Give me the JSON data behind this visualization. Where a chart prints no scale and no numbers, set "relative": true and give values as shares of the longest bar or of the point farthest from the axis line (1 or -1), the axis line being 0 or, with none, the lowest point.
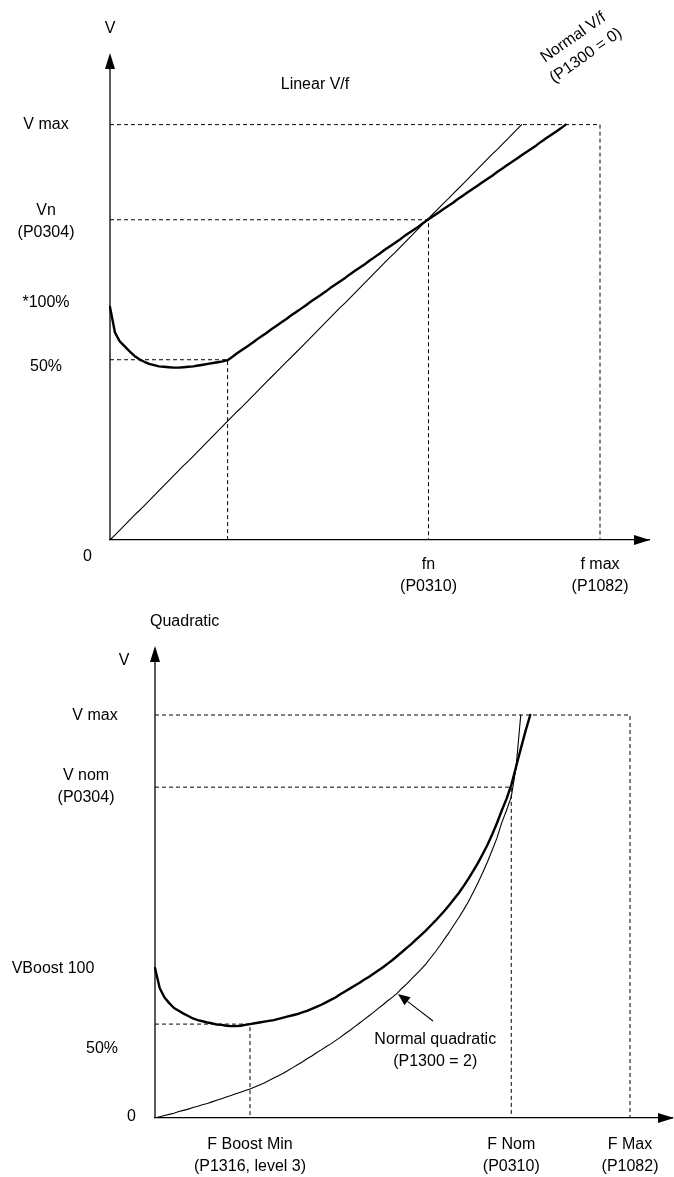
{
  "chart_data": [
    {
      "type": "line",
      "relative": true,
      "title": "Linear V/f",
      "ylabel": "V",
      "marker": "none",
      "categories": [
        null,
        null,
        null,
        null,
        null,
        null,
        null,
        null,
        null,
        null,
        null,
        null,
        null,
        null,
        null,
        null,
        null,
        null,
        null,
        null,
        null,
        null,
        null,
        null,
        null,
        null,
        null,
        null,
        null,
        null,
        null,
        null,
        null,
        null,
        null,
        null,
        null,
        null,
        null,
        null,
        null,
        null,
        null,
        null,
        null,
        null,
        null,
        null,
        null,
        null,
        null,
        null,
        null,
        null,
        null,
        null,
        null,
        null,
        null,
        null,
        null,
        null,
        null,
        null,
        null,
        "fn\n(P0310)",
        null,
        null,
        null,
        null,
        null,
        null,
        null,
        null,
        null,
        null,
        null,
        null,
        null,
        null,
        null,
        null,
        null,
        null,
        null,
        null,
        null,
        null,
        null,
        null,
        null,
        null,
        null,
        null,
        null,
        null,
        null,
        null,
        null,
        null,
        "f max\n(P1082)",
        null,
        null,
        null,
        null,
        null,
        null,
        null,
        null,
        null,
        null
      ],
      "annotations": [
        "0",
        "50%",
        "*100%",
        "Vn\n(P0304)",
        "V max"
      ],
      "series": [
        {
          "color": "#000000",
          "values": [
            0.561,
            0.5,
            0.478,
            0.466,
            0.454,
            0.443,
            0.435,
            0.429,
            0.424,
            0.421,
            0.418,
            0.417,
            0.416,
            0.415,
            0.415,
            0.416,
            0.417,
            0.418,
            0.42,
            0.422,
            0.424,
            0.426,
            0.428,
            0.43,
            0.433,
            0.441,
            0.45,
            0.458,
            0.466,
            0.474,
            0.483,
            0.491,
            0.499,
            0.508,
            0.516,
            0.524,
            0.532,
            0.541,
            0.549,
            0.557,
            0.565,
            0.574,
            0.582,
            0.59,
            0.598,
            0.607,
            0.615,
            0.623,
            0.631,
            0.64,
            0.648,
            0.656,
            0.664,
            0.673,
            0.681,
            0.689,
            0.698,
            0.706,
            0.714,
            0.722,
            0.731,
            0.739,
            0.747,
            0.755,
            0.764,
            0.772,
            0.78,
            0.788,
            0.796,
            0.804,
            0.812,
            0.821,
            0.829,
            0.837,
            0.845,
            0.853,
            0.861,
            0.869,
            0.877,
            0.886,
            0.894,
            0.902,
            0.91,
            0.918,
            0.926,
            0.934,
            0.942,
            0.95,
            0.959,
            0.967,
            0.975,
            0.983,
            0.991,
            1,
            null,
            null,
            null,
            null,
            null,
            null,
            null,
            null,
            null,
            null,
            null,
            null,
            null,
            null,
            null,
            null,
            null
          ]
        },
        {
          "name": "Normal V/f\n(P1300 = 0)",
          "color": "#000000",
          "values": [
            0,
            0.012,
            0.024,
            0.036,
            0.048,
            0.06,
            0.071,
            0.083,
            0.095,
            0.107,
            0.119,
            0.131,
            0.143,
            0.155,
            0.167,
            0.179,
            0.19,
            0.202,
            0.214,
            0.226,
            0.238,
            0.25,
            0.262,
            0.274,
            0.286,
            0.298,
            0.31,
            0.321,
            0.333,
            0.345,
            0.357,
            0.369,
            0.381,
            0.393,
            0.405,
            0.417,
            0.429,
            0.44,
            0.452,
            0.464,
            0.476,
            0.488,
            0.5,
            0.512,
            0.524,
            0.536,
            0.548,
            0.56,
            0.571,
            0.583,
            0.595,
            0.607,
            0.619,
            0.631,
            0.643,
            0.655,
            0.667,
            0.679,
            0.69,
            0.702,
            0.714,
            0.726,
            0.738,
            0.75,
            0.762,
            0.774,
            0.786,
            0.798,
            0.81,
            0.821,
            0.833,
            0.845,
            0.857,
            0.869,
            0.881,
            0.893,
            0.905,
            0.917,
            0.929,
            0.94,
            0.952,
            0.964,
            0.976,
            0.988,
            1,
            null,
            null,
            null,
            null,
            null,
            null,
            null,
            null,
            null,
            null,
            null,
            null,
            null,
            null,
            null,
            null,
            null,
            null,
            null,
            null,
            null,
            null,
            null,
            null,
            null,
            null
          ]
        },
        {
          "type": "step",
          "color": "#000000",
          "line_style": "dashed",
          "values": [
            1,
            1,
            1,
            1,
            1,
            1,
            1,
            1,
            1,
            1,
            1,
            1,
            1,
            1,
            1,
            1,
            1,
            1,
            1,
            1,
            1,
            1,
            1,
            1,
            1,
            1,
            1,
            1,
            1,
            1,
            1,
            1,
            1,
            1,
            1,
            1,
            1,
            1,
            1,
            1,
            1,
            1,
            1,
            1,
            1,
            1,
            1,
            1,
            1,
            1,
            1,
            1,
            1,
            1,
            1,
            1,
            1,
            1,
            1,
            1,
            1,
            1,
            1,
            1,
            1,
            1,
            1,
            1,
            1,
            1,
            1,
            1,
            1,
            1,
            1,
            1,
            1,
            1,
            1,
            1,
            1,
            1,
            1,
            1,
            1,
            1,
            1,
            1,
            1,
            1,
            1,
            1,
            1,
            1,
            1,
            1,
            1,
            1,
            1,
            1,
            0,
            null,
            null,
            null,
            null,
            null,
            null,
            null,
            null,
            null,
            null
          ]
        },
        {
          "type": "step",
          "color": "#000000",
          "line_style": "dashed",
          "values": [
            0.771,
            0.771,
            0.771,
            0.771,
            0.771,
            0.771,
            0.771,
            0.771,
            0.771,
            0.771,
            0.771,
            0.771,
            0.771,
            0.771,
            0.771,
            0.771,
            0.771,
            0.771,
            0.771,
            0.771,
            0.771,
            0.771,
            0.771,
            0.771,
            0.771,
            0.771,
            0.771,
            0.771,
            0.771,
            0.771,
            0.771,
            0.771,
            0.771,
            0.771,
            0.771,
            0.771,
            0.771,
            0.771,
            0.771,
            0.771,
            0.771,
            0.771,
            0.771,
            0.771,
            0.771,
            0.771,
            0.771,
            0.771,
            0.771,
            0.771,
            0.771,
            0.771,
            0.771,
            0.771,
            0.771,
            0.771,
            0.771,
            0.771,
            0.771,
            0.771,
            0.771,
            0.771,
            0.771,
            0.771,
            0.771,
            0,
            null,
            null,
            null,
            null,
            null,
            null,
            null,
            null,
            null,
            null,
            null,
            null,
            null,
            null,
            null,
            null,
            null,
            null,
            null,
            null,
            null,
            null,
            null,
            null,
            null,
            null,
            null,
            null,
            null,
            null,
            null,
            null,
            null,
            null,
            null,
            null,
            null,
            null,
            null,
            null,
            null,
            null,
            null,
            null,
            null
          ]
        },
        {
          "type": "step",
          "color": "#000000",
          "line_style": "dashed",
          "values": [
            0.434,
            0.434,
            0.434,
            0.434,
            0.434,
            0.434,
            0.434,
            0.434,
            0.434,
            0.434,
            0.434,
            0.434,
            0.434,
            0.434,
            0.434,
            0.434,
            0.434,
            0.434,
            0.434,
            0.434,
            0.434,
            0.434,
            0.434,
            0.434,
            0,
            null,
            null,
            null,
            null,
            null,
            null,
            null,
            null,
            null,
            null,
            null,
            null,
            null,
            null,
            null,
            null,
            null,
            null,
            null,
            null,
            null,
            null,
            null,
            null,
            null,
            null,
            null,
            null,
            null,
            null,
            null,
            null,
            null,
            null,
            null,
            null,
            null,
            null,
            null,
            null,
            null,
            null,
            null,
            null,
            null,
            null,
            null,
            null,
            null,
            null,
            null,
            null,
            null,
            null,
            null,
            null,
            null,
            null,
            null,
            null,
            null,
            null,
            null,
            null,
            null,
            null,
            null,
            null,
            null,
            null,
            null,
            null,
            null,
            null,
            null,
            null,
            null,
            null,
            null,
            null,
            null,
            null,
            null,
            null,
            null,
            null
          ]
        }
      ]
    },
    {
      "type": "line",
      "relative": true,
      "title": "Quadratic",
      "ylabel": "V",
      "marker": "none",
      "categories": [
        null,
        null,
        null,
        null,
        null,
        null,
        null,
        null,
        null,
        null,
        null,
        null,
        null,
        null,
        null,
        null,
        null,
        null,
        null,
        null,
        "F Boost Min\n(P1316, level 3)",
        null,
        null,
        null,
        null,
        null,
        null,
        null,
        null,
        null,
        null,
        null,
        null,
        null,
        null,
        null,
        null,
        null,
        null,
        null,
        null,
        null,
        null,
        null,
        null,
        null,
        null,
        null,
        null,
        null,
        null,
        null,
        null,
        null,
        null,
        null,
        null,
        null,
        null,
        null,
        null,
        null,
        null,
        null,
        null,
        null,
        null,
        null,
        null,
        null,
        null,
        null,
        null,
        null,
        null,
        "F Nom\n(P0310)",
        null,
        null,
        null,
        null,
        null,
        null,
        null,
        null,
        null,
        null,
        null,
        null,
        null,
        null,
        null,
        null,
        null,
        null,
        null,
        null,
        null,
        null,
        null,
        null,
        "F Max\n(P1082)",
        null,
        null,
        null,
        null,
        null,
        null,
        null,
        null,
        null
      ],
      "annotations": [
        "0",
        "50%",
        "VBoost 100",
        "V nom\n(P0304)",
        "V max"
      ],
      "series": [
        {
          "color": "#000000",
          "values": [
            0.372,
            0.322,
            0.299,
            0.285,
            0.273,
            0.266,
            0.259,
            0.253,
            0.247,
            0.243,
            0.24,
            0.237,
            0.235,
            0.232,
            0.231,
            0.229,
            0.228,
            0.228,
            0.229,
            0.231,
            0.233,
            0.235,
            0.237,
            0.239,
            0.241,
            0.243,
            0.246,
            0.249,
            0.252,
            0.255,
            0.258,
            0.262,
            0.266,
            0.271,
            0.276,
            0.281,
            0.287,
            0.293,
            0.299,
            0.307,
            0.314,
            0.321,
            0.328,
            0.335,
            0.343,
            0.35,
            0.358,
            0.366,
            0.374,
            0.383,
            0.392,
            0.402,
            0.412,
            0.422,
            0.432,
            0.443,
            0.454,
            0.465,
            0.477,
            0.489,
            0.502,
            0.515,
            0.529,
            0.544,
            0.559,
            0.576,
            0.594,
            0.613,
            0.633,
            0.655,
            0.678,
            0.704,
            0.732,
            0.763,
            0.792,
            0.826,
            0.871,
            0.916,
            0.96,
            1,
            null,
            null,
            null,
            null,
            null,
            null,
            null,
            null,
            null,
            null,
            null,
            null,
            null,
            null,
            null,
            null,
            null,
            null,
            null,
            null,
            null,
            null,
            null,
            null,
            null,
            null,
            null,
            null,
            null,
            null
          ]
        },
        {
          "name": "Normal quadratic\n(P1300 = 2)",
          "color": "#000000",
          "values": [
            0,
            0.003,
            0.006,
            0.009,
            0.012,
            0.016,
            0.019,
            0.022,
            0.026,
            0.029,
            0.033,
            0.036,
            0.04,
            0.044,
            0.048,
            0.052,
            0.056,
            0.06,
            0.064,
            0.068,
            0.072,
            0.077,
            0.082,
            0.087,
            0.093,
            0.099,
            0.105,
            0.111,
            0.118,
            0.125,
            0.132,
            0.139,
            0.147,
            0.154,
            0.162,
            0.169,
            0.177,
            0.184,
            0.192,
            0.2,
            0.209,
            0.217,
            0.226,
            0.235,
            0.244,
            0.253,
            0.262,
            0.272,
            0.281,
            0.291,
            0.3,
            0.31,
            0.322,
            0.333,
            0.345,
            0.357,
            0.369,
            0.382,
            0.397,
            0.412,
            0.428,
            0.445,
            0.462,
            0.48,
            0.498,
            0.517,
            0.537,
            0.56,
            0.584,
            0.609,
            0.636,
            0.665,
            0.695,
            0.733,
            0.763,
            0.797,
            0.868,
            1,
            null,
            null,
            null,
            null,
            null,
            null,
            null,
            null,
            null,
            null,
            null,
            null,
            null,
            null,
            null,
            null,
            null,
            null,
            null,
            null,
            null,
            null,
            null,
            null,
            null,
            null,
            null,
            null,
            null,
            null,
            null,
            null
          ]
        },
        {
          "type": "step",
          "color": "#000000",
          "line_style": "dashed",
          "values": [
            1,
            1,
            1,
            1,
            1,
            1,
            1,
            1,
            1,
            1,
            1,
            1,
            1,
            1,
            1,
            1,
            1,
            1,
            1,
            1,
            1,
            1,
            1,
            1,
            1,
            1,
            1,
            1,
            1,
            1,
            1,
            1,
            1,
            1,
            1,
            1,
            1,
            1,
            1,
            1,
            1,
            1,
            1,
            1,
            1,
            1,
            1,
            1,
            1,
            1,
            1,
            1,
            1,
            1,
            1,
            1,
            1,
            1,
            1,
            1,
            1,
            1,
            1,
            1,
            1,
            1,
            1,
            1,
            1,
            1,
            1,
            1,
            1,
            1,
            1,
            1,
            1,
            1,
            1,
            1,
            1,
            1,
            1,
            1,
            1,
            1,
            1,
            1,
            1,
            1,
            1,
            1,
            1,
            1,
            1,
            1,
            1,
            1,
            1,
            1,
            0,
            null,
            null,
            null,
            null,
            null,
            null,
            null,
            null,
            null
          ]
        },
        {
          "type": "step",
          "color": "#000000",
          "line_style": "dashed",
          "values": [
            0.821,
            0.821,
            0.821,
            0.821,
            0.821,
            0.821,
            0.821,
            0.821,
            0.821,
            0.821,
            0.821,
            0.821,
            0.821,
            0.821,
            0.821,
            0.821,
            0.821,
            0.821,
            0.821,
            0.821,
            0.821,
            0.821,
            0.821,
            0.821,
            0.821,
            0.821,
            0.821,
            0.821,
            0.821,
            0.821,
            0.821,
            0.821,
            0.821,
            0.821,
            0.821,
            0.821,
            0.821,
            0.821,
            0.821,
            0.821,
            0.821,
            0.821,
            0.821,
            0.821,
            0.821,
            0.821,
            0.821,
            0.821,
            0.821,
            0.821,
            0.821,
            0.821,
            0.821,
            0.821,
            0.821,
            0.821,
            0.821,
            0.821,
            0.821,
            0.821,
            0.821,
            0.821,
            0.821,
            0.821,
            0.821,
            0.821,
            0.821,
            0.821,
            0.821,
            0.821,
            0.821,
            0.821,
            0.821,
            0.821,
            0.821,
            0,
            null,
            null,
            null,
            null,
            null,
            null,
            null,
            null,
            null,
            null,
            null,
            null,
            null,
            null,
            null,
            null,
            null,
            null,
            null,
            null,
            null,
            null,
            null,
            null,
            null,
            null,
            null,
            null,
            null,
            null,
            null,
            null,
            null,
            null
          ]
        },
        {
          "type": "step",
          "color": "#000000",
          "line_style": "dashed",
          "values": [
            0.233,
            0.233,
            0.233,
            0.233,
            0.233,
            0.233,
            0.233,
            0.233,
            0.233,
            0.233,
            0.233,
            0.233,
            0.233,
            0.233,
            0.233,
            0.233,
            0.233,
            0.233,
            0.233,
            0.233,
            0,
            null,
            null,
            null,
            null,
            null,
            null,
            null,
            null,
            null,
            null,
            null,
            null,
            null,
            null,
            null,
            null,
            null,
            null,
            null,
            null,
            null,
            null,
            null,
            null,
            null,
            null,
            null,
            null,
            null,
            null,
            null,
            null,
            null,
            null,
            null,
            null,
            null,
            null,
            null,
            null,
            null,
            null,
            null,
            null,
            null,
            null,
            null,
            null,
            null,
            null,
            null,
            null,
            null,
            null,
            null,
            null,
            null,
            null,
            null,
            null,
            null,
            null,
            null,
            null,
            null,
            null,
            null,
            null,
            null,
            null,
            null,
            null,
            null,
            null,
            null,
            null,
            null,
            null,
            null,
            null,
            null,
            null,
            null,
            null,
            null,
            null,
            null,
            null,
            null
          ]
        }
      ]
    }
  ]
}
